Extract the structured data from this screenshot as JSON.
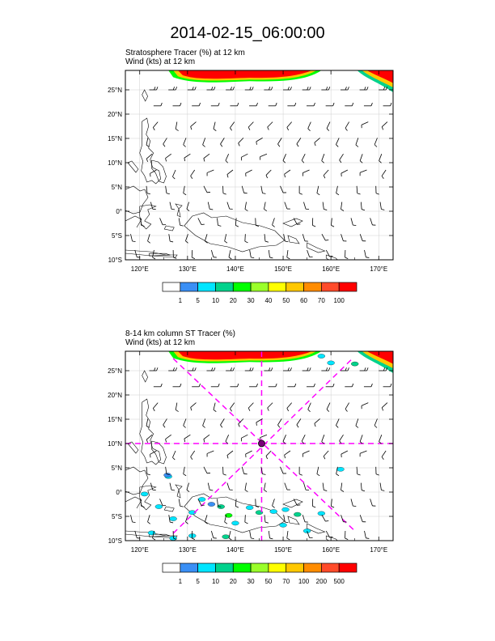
{
  "title": "2014-02-15_06:00:00",
  "panel1": {
    "line1": "Stratosphere Tracer   (%)     at  12 km",
    "line2": "Wind   (kts)     at  12 km",
    "colorbar_labels": [
      "1",
      "5",
      "10",
      "20",
      "30",
      "40",
      "50",
      "60",
      "70",
      "100"
    ]
  },
  "panel2": {
    "line1": "8-14 km column ST Tracer   (%)",
    "line2": "Wind   (kts)     at  12 km",
    "colorbar_labels": [
      "1",
      "5",
      "10",
      "20",
      "30",
      "50",
      "70",
      "100",
      "200",
      "500"
    ]
  },
  "axes": {
    "lon_labels": [
      "120°E",
      "130°E",
      "140°E",
      "150°E",
      "160°E",
      "170°E"
    ],
    "lat_labels": [
      "25°N",
      "20°N",
      "15°N",
      "10°N",
      "5°N",
      "0°",
      "5°S",
      "10°S"
    ]
  },
  "colors": [
    "#ffffff",
    "#3a8ff5",
    "#00e5ff",
    "#00d28c",
    "#00ff00",
    "#9aff2a",
    "#ffff00",
    "#ffc800",
    "#ff8c00",
    "#ff4b2a",
    "#ff0000"
  ],
  "chart_data": [
    {
      "type": "map",
      "title": "Stratosphere Tracer (%) at 12 km",
      "lon_range": [
        117,
        173
      ],
      "lat_range": [
        -10,
        29
      ],
      "levels": [
        1,
        5,
        10,
        20,
        30,
        40,
        50,
        60,
        70,
        100
      ]
    },
    {
      "type": "map",
      "title": "8-14 km column ST Tracer (%)",
      "lon_range": [
        117,
        173
      ],
      "lat_range": [
        -10,
        29
      ],
      "levels": [
        1,
        5,
        10,
        20,
        30,
        50,
        70,
        100,
        200,
        500
      ],
      "storm_center": {
        "lon": 145.5,
        "lat": 10
      }
    }
  ]
}
